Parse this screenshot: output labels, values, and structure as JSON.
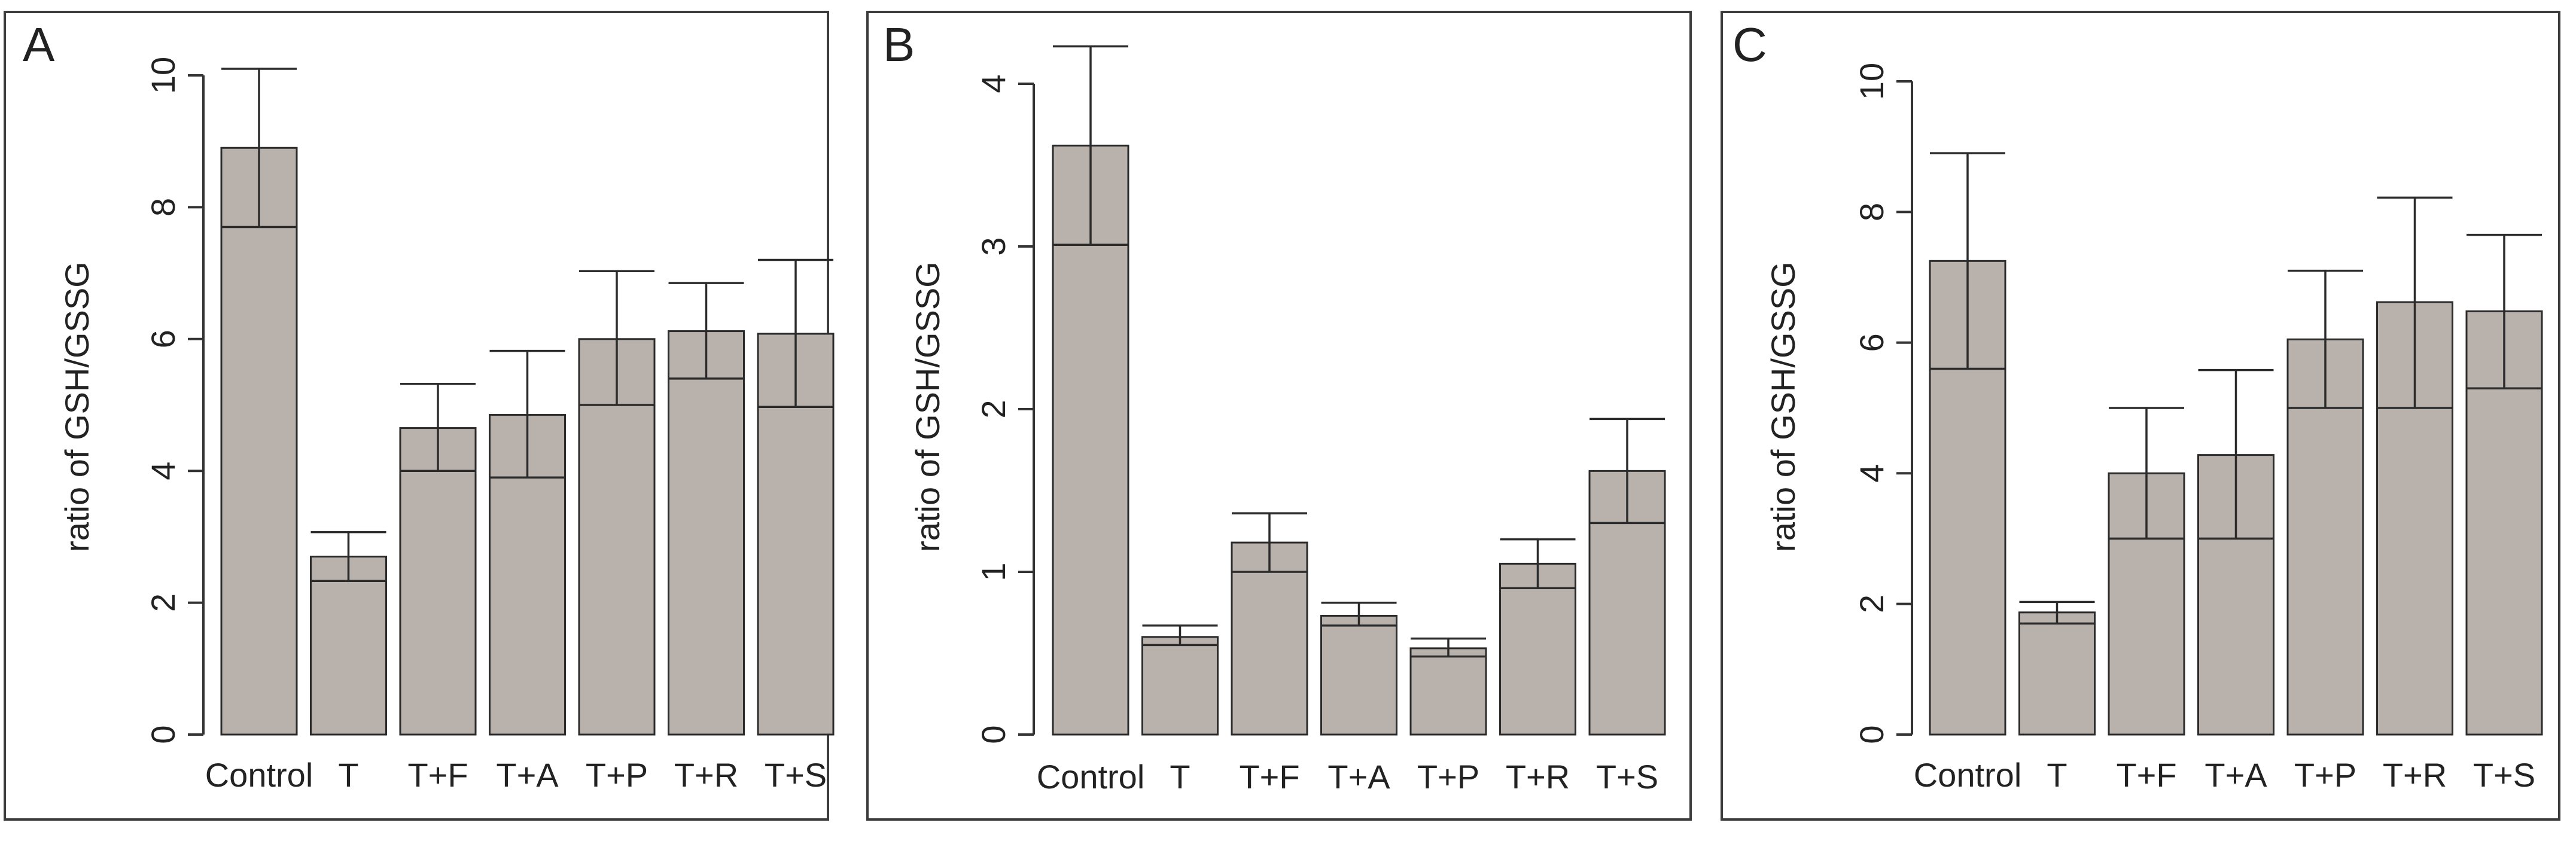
{
  "figure": {
    "background": "#ffffff",
    "bar_color": "#b8b1ac"
  },
  "chart_data": [
    {
      "type": "bar",
      "panel": "A",
      "title": "",
      "xlabel": "",
      "ylabel": "ratio of GSH/GSSG",
      "ylim": [
        0,
        10
      ],
      "yticks": [
        0,
        2,
        4,
        6,
        8,
        10
      ],
      "categories": [
        "Control",
        "T",
        "T+F",
        "T+A",
        "T+P",
        "T+R",
        "T+S"
      ],
      "values": [
        8.9,
        2.7,
        4.65,
        4.85,
        6.0,
        6.12,
        6.08
      ],
      "error_low": [
        7.7,
        2.33,
        4.0,
        3.9,
        5.0,
        5.4,
        4.97
      ],
      "error_high": [
        10.1,
        3.07,
        5.32,
        5.82,
        7.03,
        6.85,
        7.2
      ]
    },
    {
      "type": "bar",
      "panel": "B",
      "title": "",
      "xlabel": "",
      "ylabel": "ratio of GSH/GSSG",
      "ylim": [
        0,
        4
      ],
      "yticks": [
        0,
        1,
        2,
        3,
        4
      ],
      "categories": [
        "Control",
        "T",
        "T+F",
        "T+A",
        "T+P",
        "T+R",
        "T+S"
      ],
      "values": [
        3.62,
        0.6,
        1.18,
        0.73,
        0.53,
        1.05,
        1.62
      ],
      "error_low": [
        3.01,
        0.55,
        1.0,
        0.67,
        0.48,
        0.9,
        1.3
      ],
      "error_high": [
        4.23,
        0.67,
        1.36,
        0.81,
        0.59,
        1.2,
        1.94
      ]
    },
    {
      "type": "bar",
      "panel": "C",
      "title": "",
      "xlabel": "",
      "ylabel": "ratio of GSH/GSSG",
      "ylim": [
        0,
        10
      ],
      "yticks": [
        0,
        2,
        4,
        6,
        8,
        10
      ],
      "categories": [
        "Control",
        "T",
        "T+F",
        "T+A",
        "T+P",
        "T+R",
        "T+S"
      ],
      "values": [
        7.25,
        1.87,
        4.0,
        4.28,
        6.05,
        6.62,
        6.48
      ],
      "error_low": [
        5.6,
        1.7,
        3.0,
        3.0,
        5.0,
        5.0,
        5.3
      ],
      "error_high": [
        8.9,
        2.03,
        5.0,
        5.58,
        7.1,
        8.22,
        7.65
      ]
    }
  ]
}
